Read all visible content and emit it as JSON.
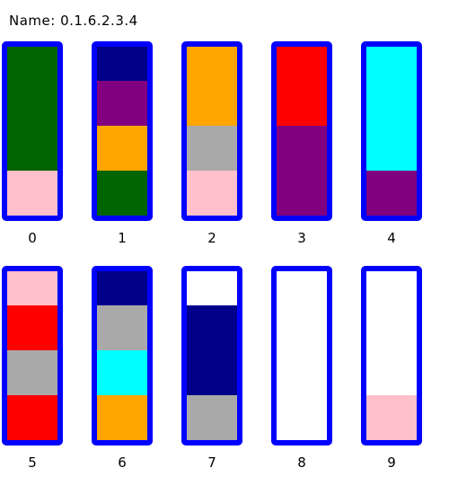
{
  "header": {
    "title": "Name: 0.1.6.2.3.4"
  },
  "tubes": [
    {
      "label": "0",
      "colors": [
        "pink",
        "darkgreen",
        "darkgreen",
        "darkgreen"
      ]
    },
    {
      "label": "1",
      "colors": [
        "darkgreen",
        "orange",
        "purple",
        "navy"
      ]
    },
    {
      "label": "2",
      "colors": [
        "pink",
        "gray",
        "orange",
        "orange"
      ]
    },
    {
      "label": "3",
      "colors": [
        "purple",
        "purple",
        "red",
        "red"
      ]
    },
    {
      "label": "4",
      "colors": [
        "purple",
        "cyan",
        "cyan",
        "cyan"
      ]
    },
    {
      "label": "5",
      "colors": [
        "red",
        "gray",
        "red",
        "pink"
      ]
    },
    {
      "label": "6",
      "colors": [
        "orange",
        "cyan",
        "gray",
        "navy"
      ]
    },
    {
      "label": "7",
      "colors": [
        "gray",
        "navy",
        "navy"
      ]
    },
    {
      "label": "8",
      "colors": []
    },
    {
      "label": "9",
      "colors": [
        "pink"
      ]
    }
  ],
  "palette": {
    "pink": "#ffc0cb",
    "darkgreen": "#006400",
    "orange": "#ffa500",
    "purple": "#800080",
    "navy": "#00008b",
    "gray": "#a9a9a9",
    "red": "#ff0000",
    "cyan": "#00ffff",
    "tube_border": "#0000ff"
  }
}
